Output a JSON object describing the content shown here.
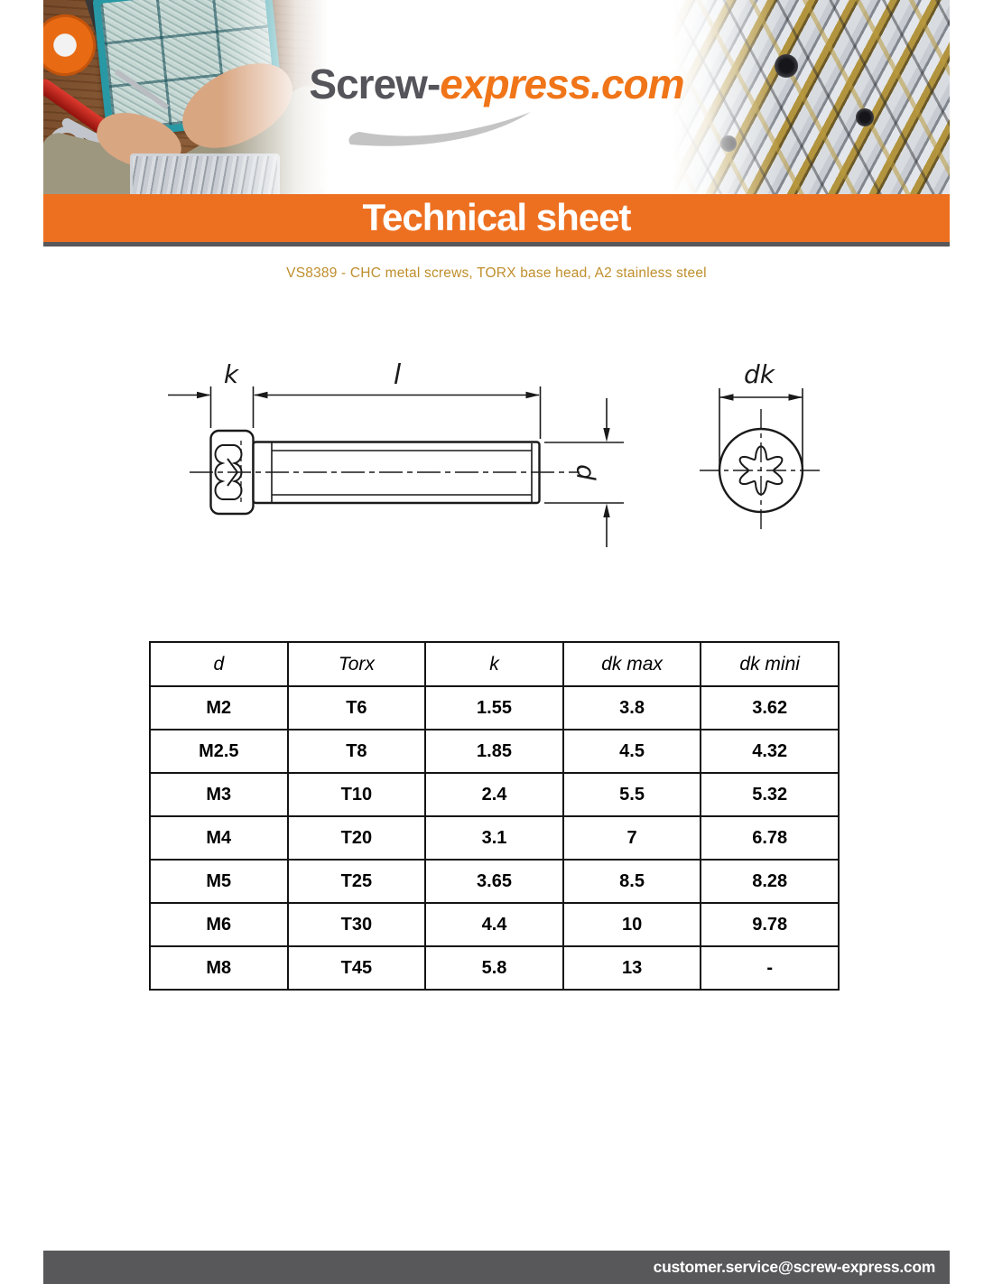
{
  "logo": {
    "part1": "Screw-",
    "part2": "express.com"
  },
  "banner": {
    "title": "Technical sheet"
  },
  "subtitle": "VS8389 - CHC metal screws, TORX base head, A2 stainless steel",
  "diagram": {
    "labels": {
      "k": "k",
      "l": "l",
      "d": "d",
      "dk": "dk"
    }
  },
  "table": {
    "headers": [
      "d",
      "Torx",
      "k",
      "dk max",
      "dk mini"
    ],
    "rows": [
      [
        "M2",
        "T6",
        "1.55",
        "3.8",
        "3.62"
      ],
      [
        "M2.5",
        "T8",
        "1.85",
        "4.5",
        "4.32"
      ],
      [
        "M3",
        "T10",
        "2.4",
        "5.5",
        "5.32"
      ],
      [
        "M4",
        "T20",
        "3.1",
        "7",
        "6.78"
      ],
      [
        "M5",
        "T25",
        "3.65",
        "8.5",
        "8.28"
      ],
      [
        "M6",
        "T30",
        "4.4",
        "10",
        "9.78"
      ],
      [
        "M8",
        "T45",
        "5.8",
        "13",
        "-"
      ]
    ]
  },
  "footer": {
    "email": "customer.service@screw-express.com"
  },
  "colors": {
    "accent_orange": "#ed7021",
    "dark_gray": "#58585a",
    "subtitle_gold": "#bf8e2c",
    "drawing_line": "#1a1a1a"
  }
}
